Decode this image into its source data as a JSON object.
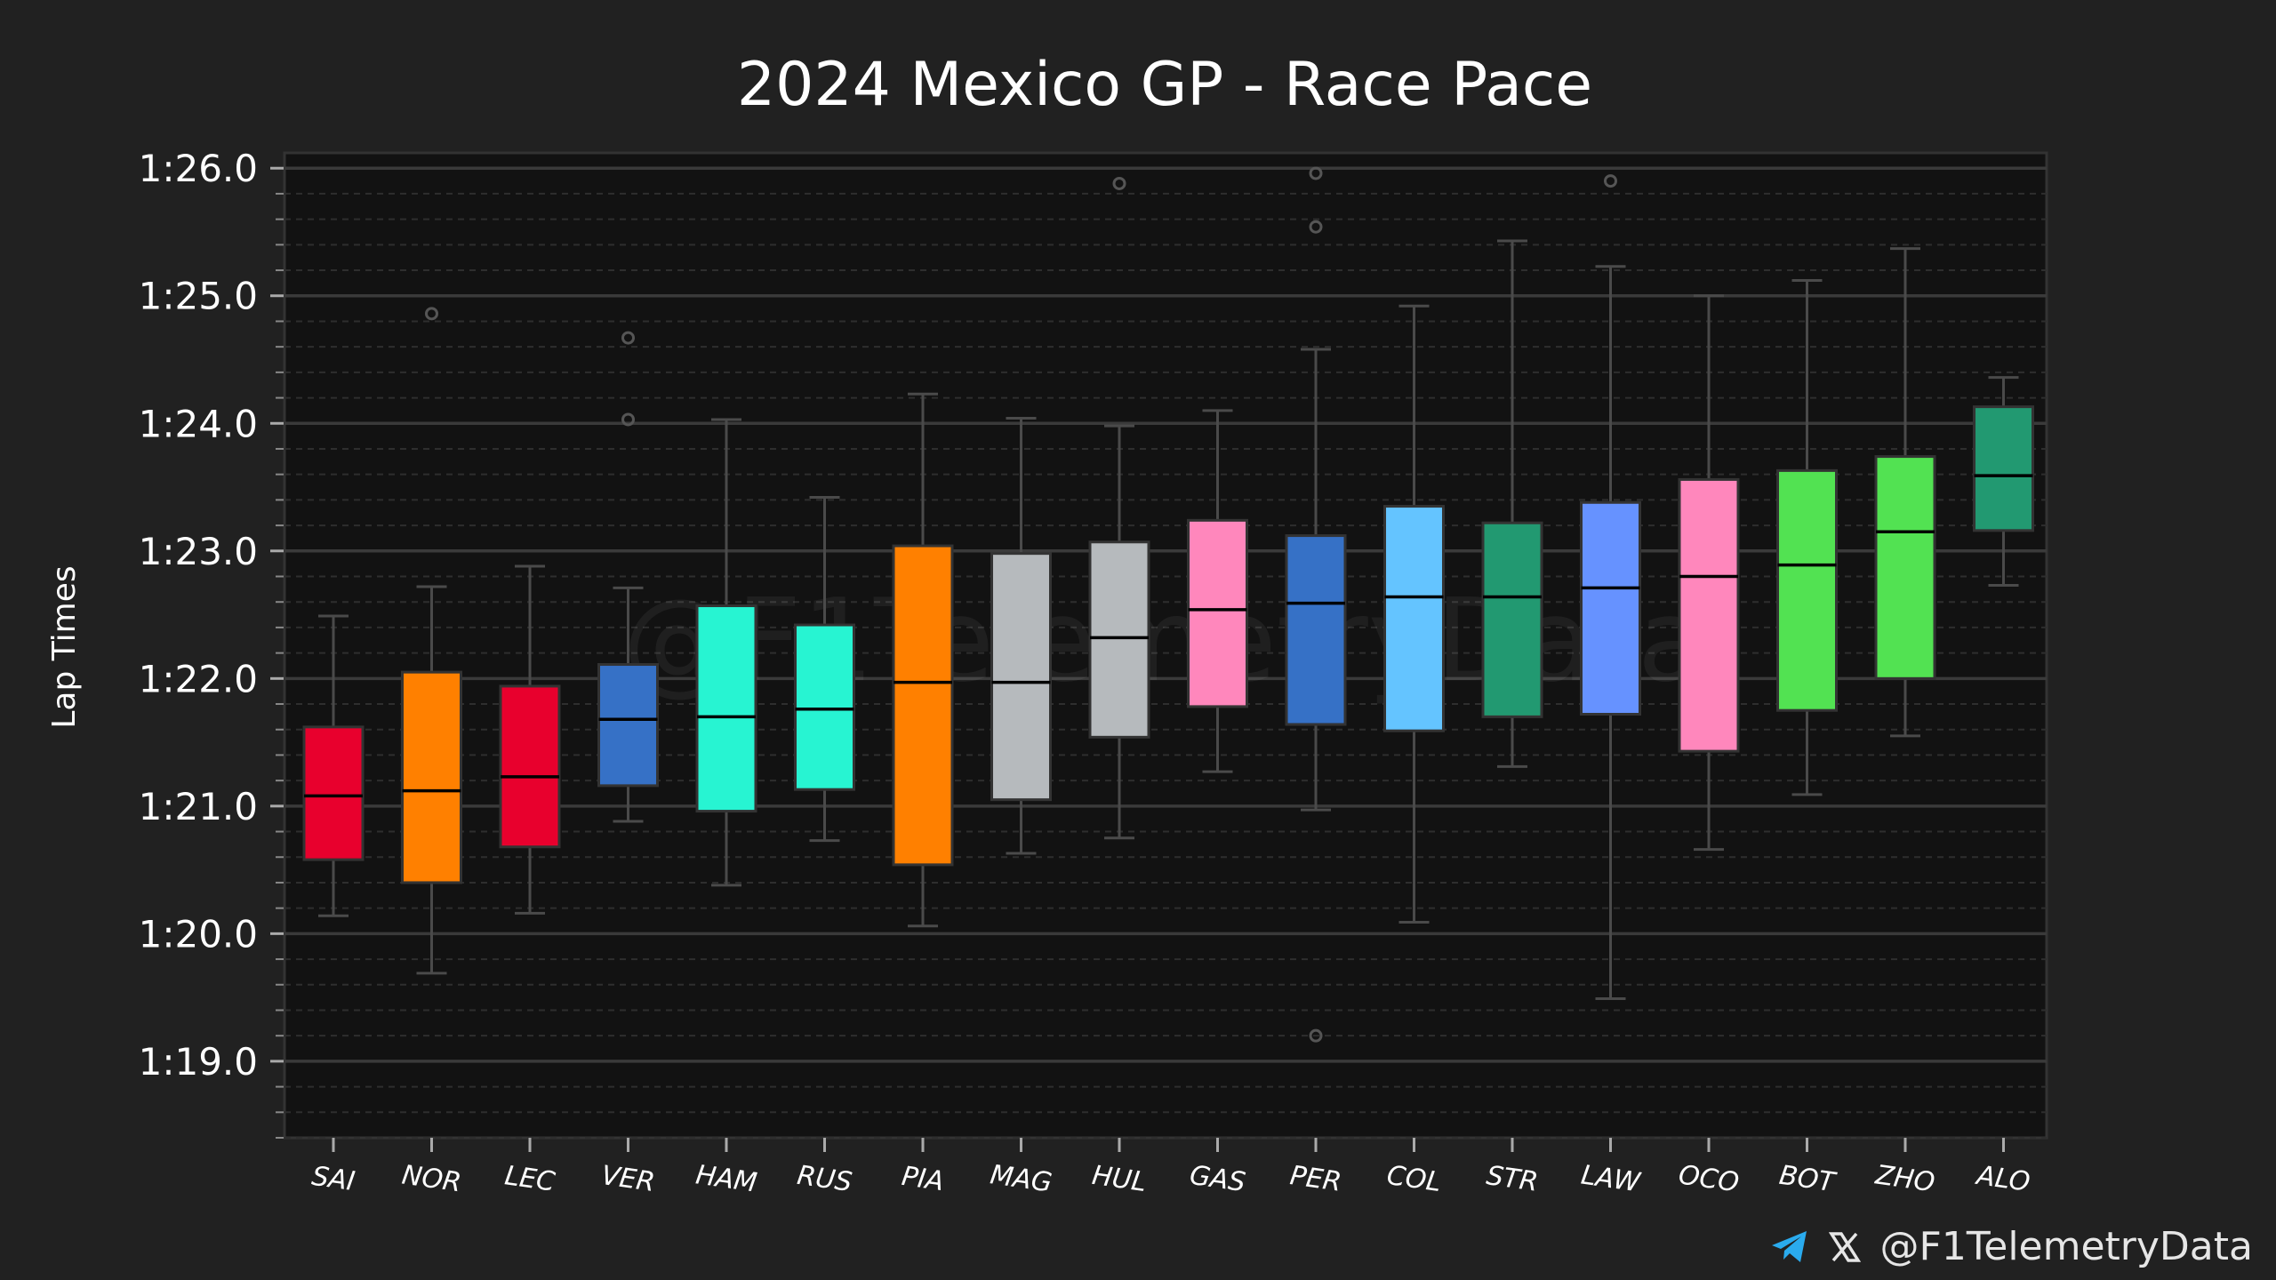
{
  "chart_data": {
    "type": "box",
    "title": "2024 Mexico GP - Race Pace",
    "ylabel": "Lap Times",
    "xlabel": "",
    "yticks": [
      {
        "value": 86.0,
        "label": "1:26.0"
      },
      {
        "value": 85.0,
        "label": "1:25.0"
      },
      {
        "value": 84.0,
        "label": "1:24.0"
      },
      {
        "value": 83.0,
        "label": "1:23.0"
      },
      {
        "value": 82.0,
        "label": "1:22.0"
      },
      {
        "value": 81.0,
        "label": "1:21.0"
      },
      {
        "value": 80.0,
        "label": "1:20.0"
      },
      {
        "value": 79.0,
        "label": "1:19.0"
      }
    ],
    "ylim": [
      78.4,
      86.12
    ],
    "grid": true,
    "watermark": "@F1TelemetryData",
    "series": [
      {
        "name": "SAI",
        "color": "#E8002D",
        "whisker_low": 80.14,
        "q1": 80.58,
        "median": 81.08,
        "q3": 81.62,
        "whisker_high": 82.49,
        "outliers": []
      },
      {
        "name": "NOR",
        "color": "#FF8000",
        "whisker_low": 79.69,
        "q1": 80.4,
        "median": 81.12,
        "q3": 82.05,
        "whisker_high": 82.72,
        "outliers": [
          84.86
        ]
      },
      {
        "name": "LEC",
        "color": "#E8002D",
        "whisker_low": 80.16,
        "q1": 80.68,
        "median": 81.23,
        "q3": 81.94,
        "whisker_high": 82.88,
        "outliers": []
      },
      {
        "name": "VER",
        "color": "#3671C6",
        "whisker_low": 80.88,
        "q1": 81.16,
        "median": 81.68,
        "q3": 82.11,
        "whisker_high": 82.71,
        "outliers": [
          84.03,
          84.67
        ]
      },
      {
        "name": "HAM",
        "color": "#27F4D2",
        "whisker_low": 80.38,
        "q1": 80.96,
        "median": 81.7,
        "q3": 82.57,
        "whisker_high": 84.03,
        "outliers": []
      },
      {
        "name": "RUS",
        "color": "#27F4D2",
        "whisker_low": 80.73,
        "q1": 81.13,
        "median": 81.76,
        "q3": 82.42,
        "whisker_high": 83.42,
        "outliers": []
      },
      {
        "name": "PIA",
        "color": "#FF8000",
        "whisker_low": 80.06,
        "q1": 80.54,
        "median": 81.97,
        "q3": 83.04,
        "whisker_high": 84.23,
        "outliers": []
      },
      {
        "name": "MAG",
        "color": "#B6BABD",
        "whisker_low": 80.63,
        "q1": 81.05,
        "median": 81.97,
        "q3": 82.98,
        "whisker_high": 84.04,
        "outliers": []
      },
      {
        "name": "HUL",
        "color": "#B6BABD",
        "whisker_low": 80.75,
        "q1": 81.54,
        "median": 82.32,
        "q3": 83.07,
        "whisker_high": 83.98,
        "outliers": [
          85.88
        ]
      },
      {
        "name": "GAS",
        "color": "#FF87BC",
        "whisker_low": 81.27,
        "q1": 81.78,
        "median": 82.54,
        "q3": 83.24,
        "whisker_high": 84.1,
        "outliers": []
      },
      {
        "name": "PER",
        "color": "#3671C6",
        "whisker_low": 80.97,
        "q1": 81.64,
        "median": 82.59,
        "q3": 83.12,
        "whisker_high": 84.58,
        "outliers": [
          79.2,
          85.54,
          85.96
        ]
      },
      {
        "name": "COL",
        "color": "#64C4FF",
        "whisker_low": 80.09,
        "q1": 81.59,
        "median": 82.64,
        "q3": 83.35,
        "whisker_high": 84.92,
        "outliers": []
      },
      {
        "name": "STR",
        "color": "#229971",
        "whisker_low": 81.31,
        "q1": 81.7,
        "median": 82.64,
        "q3": 83.22,
        "whisker_high": 85.43,
        "outliers": []
      },
      {
        "name": "LAW",
        "color": "#6692FF",
        "whisker_low": 79.49,
        "q1": 81.72,
        "median": 82.71,
        "q3": 83.38,
        "whisker_high": 85.23,
        "outliers": [
          85.9
        ]
      },
      {
        "name": "OCO",
        "color": "#FF87BC",
        "whisker_low": 80.66,
        "q1": 81.43,
        "median": 82.8,
        "q3": 83.56,
        "whisker_high": 85.0,
        "outliers": []
      },
      {
        "name": "BOT",
        "color": "#52E252",
        "whisker_low": 81.09,
        "q1": 81.75,
        "median": 82.89,
        "q3": 83.63,
        "whisker_high": 85.12,
        "outliers": []
      },
      {
        "name": "ZHO",
        "color": "#52E252",
        "whisker_low": 81.55,
        "q1": 82.0,
        "median": 83.15,
        "q3": 83.74,
        "whisker_high": 85.37,
        "outliers": []
      },
      {
        "name": "ALO",
        "color": "#229971",
        "whisker_low": 82.73,
        "q1": 83.16,
        "median": 83.59,
        "q3": 84.13,
        "whisker_high": 84.36,
        "outliers": []
      }
    ]
  },
  "footer": {
    "handle": "@F1TelemetryData",
    "telegram_icon": "telegram-icon",
    "x_icon": "x-logo-icon",
    "telegram_color": "#2AABEE"
  }
}
